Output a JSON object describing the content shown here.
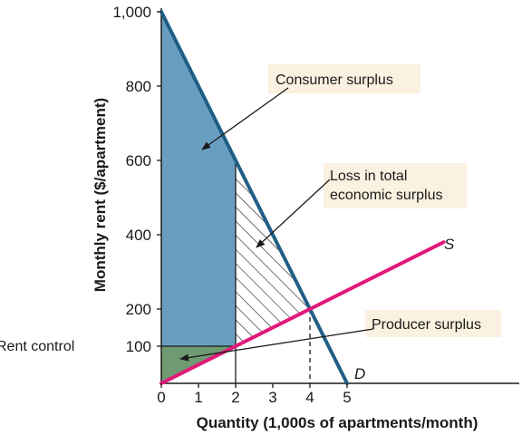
{
  "chart_data": {
    "type": "line",
    "xlabel": "Quantity (1,000s of apartments/month)",
    "ylabel": "Monthly rent ($/apartment)",
    "xlim": [
      0,
      5
    ],
    "ylim": [
      0,
      1000
    ],
    "x_ticks": [
      "0",
      "1",
      "2",
      "3",
      "4",
      "5"
    ],
    "y_ticks": [
      {
        "value": 100,
        "label": "100"
      },
      {
        "value": 200,
        "label": "200"
      },
      {
        "value": 400,
        "label": "400"
      },
      {
        "value": 600,
        "label": "600"
      },
      {
        "value": 800,
        "label": "800"
      },
      {
        "value": 1000,
        "label": "1,000"
      }
    ],
    "series": [
      {
        "name": "D",
        "x": [
          0,
          5
        ],
        "y": [
          1000,
          0
        ]
      },
      {
        "name": "S",
        "x": [
          0,
          7.6
        ],
        "y": [
          0,
          380
        ]
      }
    ],
    "rent_control": {
      "label": "Rent control",
      "value": 100,
      "quantity": 2
    },
    "equilibrium": {
      "quantity": 4,
      "rent": 200
    },
    "regions": [
      {
        "name": "Consumer surplus",
        "label": "Consumer surplus"
      },
      {
        "name": "Loss in total economic surplus",
        "label_lines": [
          "Loss in total",
          "economic surplus"
        ]
      },
      {
        "name": "Producer surplus",
        "label": "Producer surplus"
      }
    ],
    "grid": false,
    "legend": "none"
  },
  "colors": {
    "demand": "#1f5f86",
    "supply": "#e0197a",
    "consumer_surplus": "#6a9ec1",
    "producer_surplus": "#6f9a72",
    "callout_box": "#fbf1e0",
    "axis": "#1a1a1a"
  }
}
